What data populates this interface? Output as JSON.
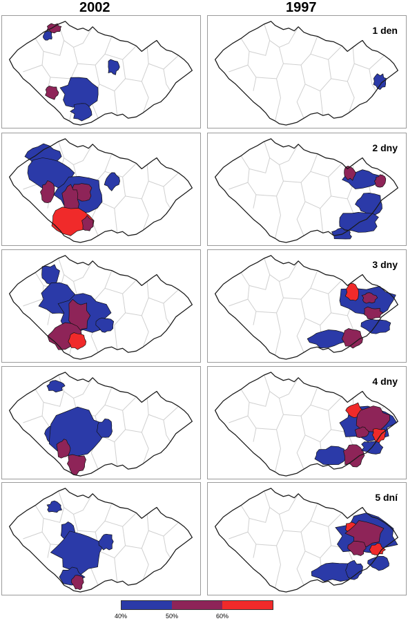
{
  "columns": {
    "left": "2002",
    "right": "1997"
  },
  "panels": {
    "d1_2002": "",
    "d1_1997": "1 den",
    "d2_2002": "",
    "d2_1997": "2 dny",
    "d3_2002": "",
    "d3_1997": "3 dny",
    "d4_2002": "",
    "d4_1997": "4 dny",
    "d5_2002": "",
    "d5_1997": "5 dní"
  },
  "legend": {
    "ticks": [
      "40%",
      "50%",
      "60%"
    ],
    "colors": [
      "#2b3aa8",
      "#8e2458",
      "#f02a2a"
    ]
  },
  "colors": {
    "blue": "#2b3aa8",
    "purple": "#8e2458",
    "red": "#f02a2a",
    "border": "#1a1a1a",
    "region_lines": "#cfcfcf"
  }
}
